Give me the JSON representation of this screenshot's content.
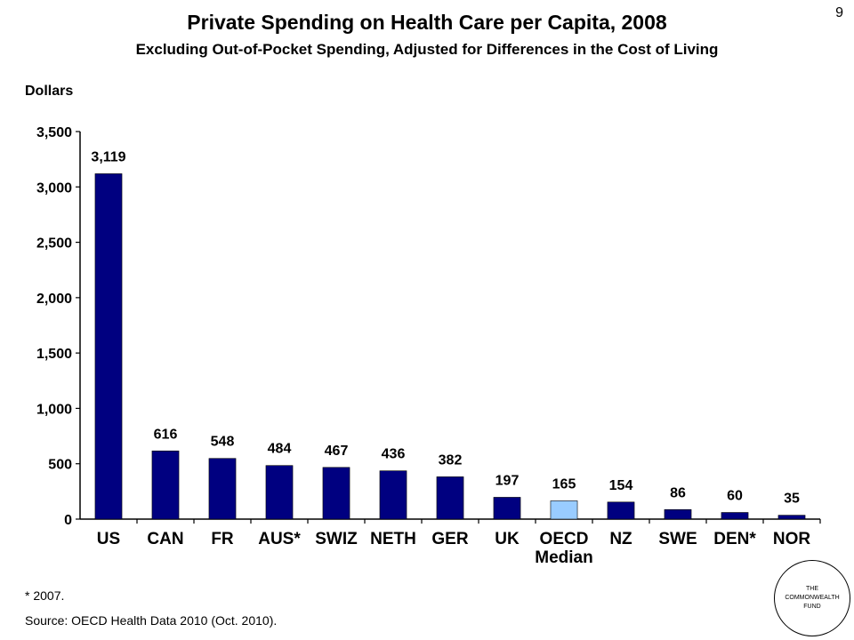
{
  "header": {
    "title": "Private Spending on Health Care per Capita, 2008",
    "subtitle": "Excluding Out-of-Pocket Spending, Adjusted for Differences in the Cost of Living",
    "page_number": "9"
  },
  "footer": {
    "footnote": "* 2007.",
    "source": "Source: OECD Health Data 2010 (Oct. 2010).",
    "logo_lines": [
      "THE",
      "COMMONWEALTH",
      "FUND"
    ]
  },
  "colors": {
    "bar": "#000080",
    "highlight_bar": "#99CCFF"
  },
  "chart_data": {
    "type": "bar",
    "ylabel": "Dollars",
    "xlabel": "",
    "categories": [
      "US",
      "CAN",
      "FR",
      "AUS*",
      "SWIZ",
      "NETH",
      "GER",
      "UK",
      "OECD\nMedian",
      "NZ",
      "SWE",
      "DEN*",
      "NOR"
    ],
    "values": [
      3119,
      616,
      548,
      484,
      467,
      436,
      382,
      197,
      165,
      154,
      86,
      60,
      35
    ],
    "data_labels": [
      "3,119",
      "616",
      "548",
      "484",
      "467",
      "436",
      "382",
      "197",
      "165",
      "154",
      "86",
      "60",
      "35"
    ],
    "highlight_index": 8,
    "ylim": [
      0,
      3500
    ],
    "yticks": [
      0,
      500,
      1000,
      1500,
      2000,
      2500,
      3000,
      3500
    ],
    "ytick_labels": [
      "0",
      "500",
      "1,000",
      "1,500",
      "2,000",
      "2,500",
      "3,000",
      "3,500"
    ],
    "grid": false,
    "legend": "none"
  }
}
